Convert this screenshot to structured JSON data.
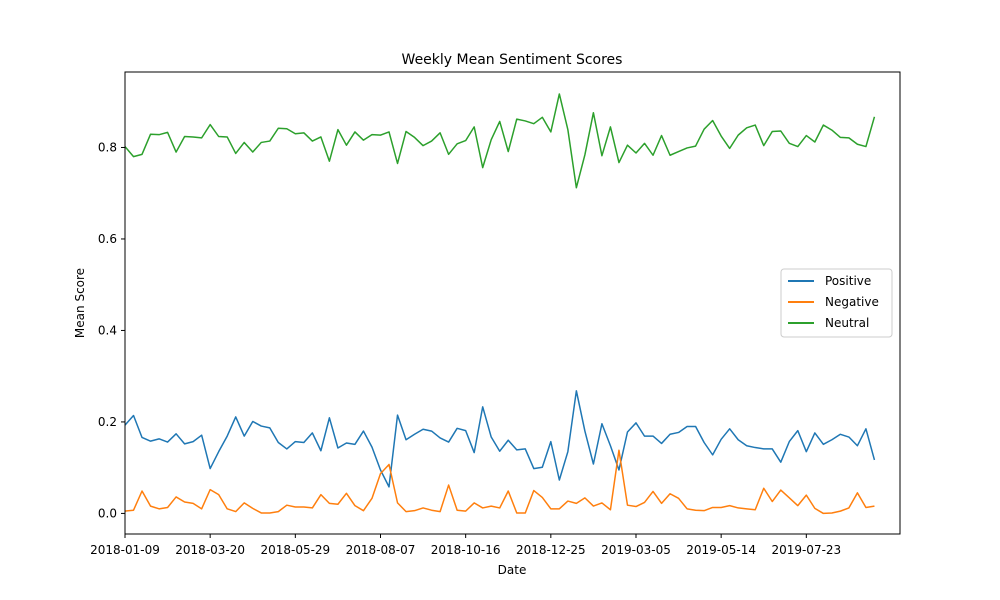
{
  "chart_data": {
    "type": "line",
    "title": "Weekly Mean Sentiment Scores",
    "xlabel": "Date",
    "ylabel": "Mean Score",
    "x_start": "2018-01-09",
    "x_step_days": 7,
    "xlim": [
      "2018-01-09",
      "2019-10-08"
    ],
    "ylim": [
      -0.045,
      0.965
    ],
    "x_ticks": [
      "2018-01-09",
      "2018-03-20",
      "2018-05-29",
      "2018-08-07",
      "2018-10-16",
      "2018-12-25",
      "2019-03-05",
      "2019-05-14",
      "2019-07-23"
    ],
    "y_ticks": [
      "0.0",
      "0.2",
      "0.4",
      "0.6",
      "0.8"
    ],
    "y_tick_values": [
      0.0,
      0.2,
      0.4,
      0.6,
      0.8
    ],
    "legend_position": "center-right",
    "series": [
      {
        "name": "Positive",
        "color": "#1f77b4",
        "values": [
          0.193,
          0.214,
          0.166,
          0.158,
          0.163,
          0.156,
          0.174,
          0.152,
          0.157,
          0.171,
          0.098,
          0.135,
          0.169,
          0.211,
          0.169,
          0.201,
          0.191,
          0.187,
          0.155,
          0.141,
          0.157,
          0.155,
          0.176,
          0.137,
          0.209,
          0.143,
          0.154,
          0.151,
          0.18,
          0.145,
          0.095,
          0.058,
          0.215,
          0.161,
          0.173,
          0.184,
          0.18,
          0.165,
          0.156,
          0.186,
          0.181,
          0.133,
          0.233,
          0.167,
          0.136,
          0.16,
          0.139,
          0.141,
          0.098,
          0.101,
          0.157,
          0.073,
          0.135,
          0.268,
          0.18,
          0.108,
          0.196,
          0.148,
          0.095,
          0.178,
          0.198,
          0.169,
          0.169,
          0.153,
          0.173,
          0.177,
          0.19,
          0.19,
          0.155,
          0.128,
          0.162,
          0.185,
          0.161,
          0.148,
          0.144,
          0.141,
          0.141,
          0.112,
          0.157,
          0.181,
          0.135,
          0.176,
          0.151,
          0.161,
          0.173,
          0.167,
          0.148,
          0.185,
          0.117
        ]
      },
      {
        "name": "Negative",
        "color": "#ff7f0e",
        "values": [
          0.005,
          0.007,
          0.049,
          0.016,
          0.01,
          0.013,
          0.036,
          0.025,
          0.022,
          0.01,
          0.052,
          0.041,
          0.01,
          0.004,
          0.023,
          0.011,
          0.001,
          0.001,
          0.004,
          0.018,
          0.014,
          0.014,
          0.012,
          0.041,
          0.022,
          0.02,
          0.044,
          0.017,
          0.006,
          0.033,
          0.087,
          0.107,
          0.023,
          0.004,
          0.006,
          0.012,
          0.007,
          0.004,
          0.062,
          0.007,
          0.005,
          0.023,
          0.012,
          0.016,
          0.012,
          0.049,
          0.001,
          0.001,
          0.05,
          0.035,
          0.01,
          0.01,
          0.027,
          0.022,
          0.034,
          0.016,
          0.023,
          0.008,
          0.138,
          0.018,
          0.015,
          0.024,
          0.048,
          0.022,
          0.043,
          0.033,
          0.01,
          0.007,
          0.006,
          0.013,
          0.013,
          0.017,
          0.012,
          0.01,
          0.008,
          0.055,
          0.026,
          0.051,
          0.034,
          0.017,
          0.04,
          0.011,
          0.0,
          0.001,
          0.005,
          0.012,
          0.045,
          0.013,
          0.016
        ]
      },
      {
        "name": "Neutral",
        "color": "#2ca02c",
        "values": [
          0.802,
          0.78,
          0.785,
          0.829,
          0.828,
          0.833,
          0.79,
          0.824,
          0.823,
          0.821,
          0.85,
          0.824,
          0.823,
          0.787,
          0.811,
          0.79,
          0.811,
          0.814,
          0.842,
          0.841,
          0.83,
          0.832,
          0.814,
          0.823,
          0.77,
          0.839,
          0.805,
          0.834,
          0.816,
          0.828,
          0.827,
          0.834,
          0.765,
          0.835,
          0.822,
          0.804,
          0.814,
          0.832,
          0.785,
          0.808,
          0.815,
          0.845,
          0.756,
          0.817,
          0.857,
          0.791,
          0.862,
          0.858,
          0.852,
          0.866,
          0.834,
          0.917,
          0.839,
          0.712,
          0.784,
          0.876,
          0.782,
          0.845,
          0.767,
          0.805,
          0.788,
          0.809,
          0.783,
          0.826,
          0.783,
          0.791,
          0.799,
          0.803,
          0.84,
          0.859,
          0.825,
          0.798,
          0.827,
          0.843,
          0.849,
          0.804,
          0.835,
          0.836,
          0.809,
          0.802,
          0.826,
          0.812,
          0.849,
          0.838,
          0.822,
          0.821,
          0.807,
          0.802,
          0.867
        ]
      }
    ]
  }
}
